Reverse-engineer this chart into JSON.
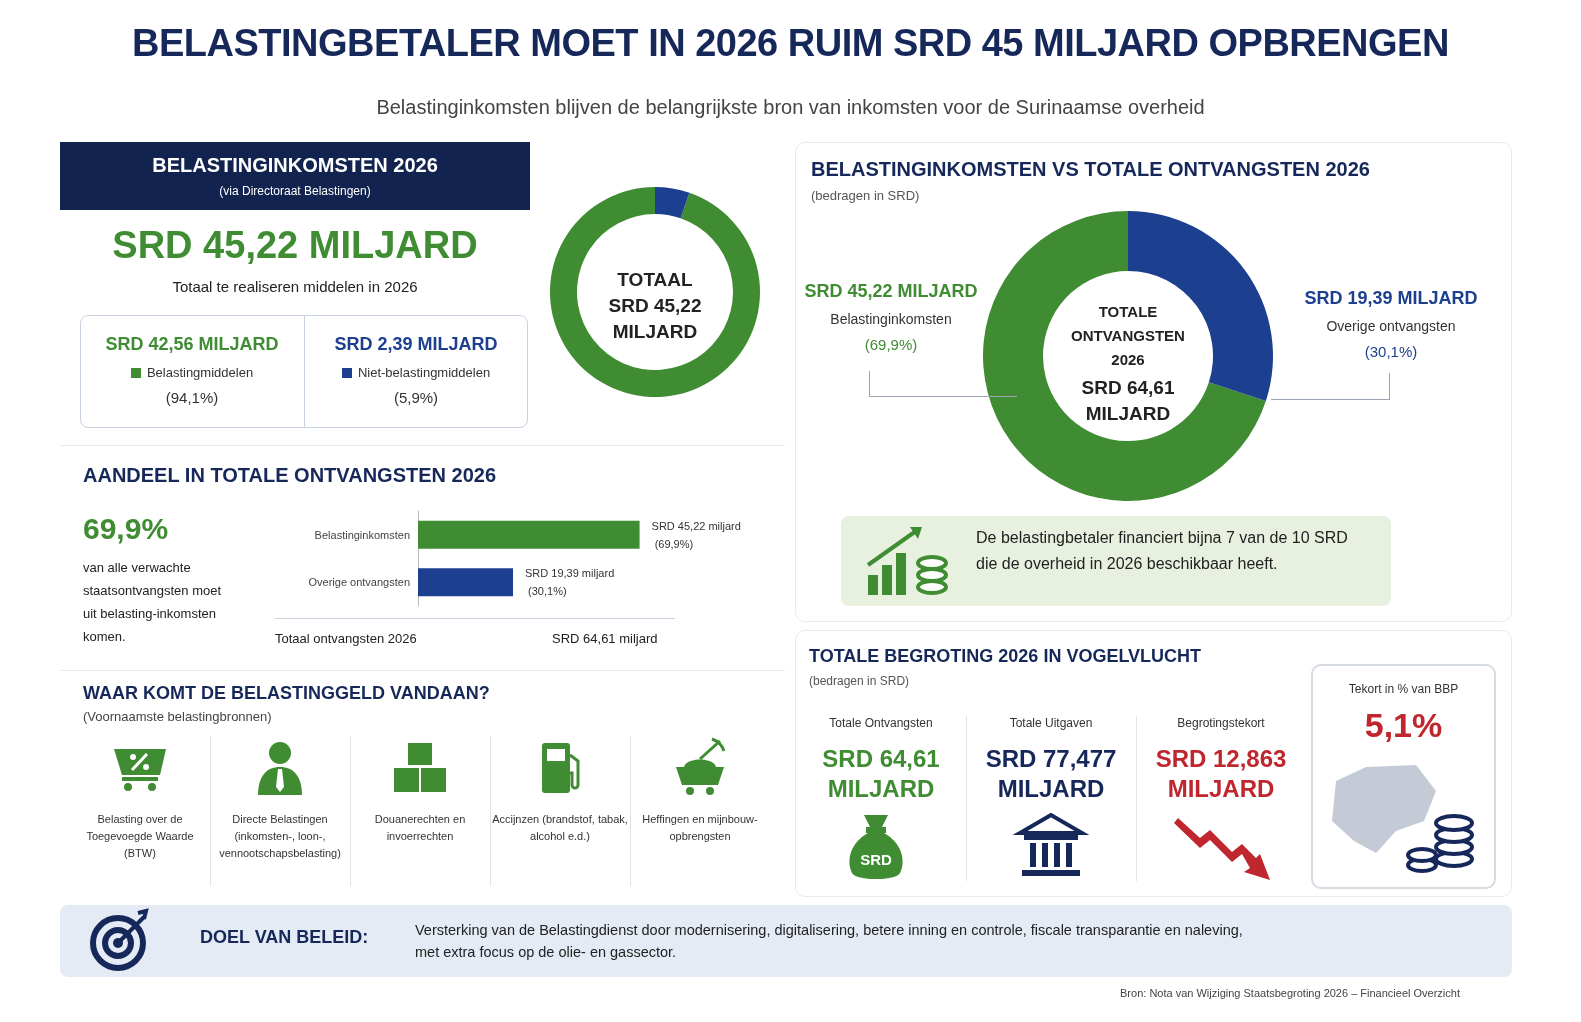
{
  "chart_data": [
    {
      "type": "other",
      "title": "BELASTINGBETALER MOET IN 2026 RUIM SRD 45 MILJARD OPBRENGEN",
      "subtitle": "Belastinginkomsten blijven de belangrijkste bron van inkomsten voor de Surinaamse overheid"
    },
    {
      "type": "donut",
      "title": "BELASTINGINKOMSTEN 2026",
      "subtitle": "(via Directoraat Belastingen)",
      "categories": [
        "Belastingmiddelen",
        "Niet-belastingmiddelen"
      ],
      "values": [
        42.56,
        2.39
      ],
      "colors": [
        "#3f8c32",
        "#1d3f8f"
      ],
      "value_labels": [
        "SRD 42,56 MILJARD",
        "SRD 2,39 MILJARD"
      ],
      "legend": "left",
      "annotations": [
        "SRD 45,22 MILJARD",
        "Totaal te realiseren middelen in 2026",
        "(94,1%)",
        "(5,9%)",
        "TOTAAL\nSRD 45,22\nMILJARD"
      ]
    },
    {
      "type": "donut",
      "title": "BELASTINGINKOMSTEN VS TOTALE ONTVANGSTEN 2026",
      "subtitle": "(bedragen in SRD)",
      "categories": [
        "Belastinginkomsten",
        "Overige ontvangsten"
      ],
      "values": [
        45.22,
        19.39
      ],
      "colors": [
        "#3f8c32",
        "#1d3f8f"
      ],
      "value_labels": [
        "SRD 45,22 MILJARD",
        "SRD 19,39 MILJARD"
      ],
      "legend": false,
      "annotations": [
        "(69,9%)",
        "(30,1%)",
        "TOTALE\nONTVANGSTEN\n2026",
        "SRD 64,61\nMILJARD",
        "De belastingbetaler financiert bijna 7 van de 10 SRD die de overheid in 2026 beschikbaar heeft."
      ]
    },
    {
      "type": "bar",
      "orientation": "horizontal",
      "title": "AANDEEL IN TOTALE ONTVANGSTEN 2026",
      "categories": [
        "Belastinginkomsten",
        "Overige ontvangsten"
      ],
      "values": [
        45.22,
        19.39
      ],
      "colors": [
        "#3f8c32",
        "#1d3f8f"
      ],
      "value_labels": [
        "SRD 45,22 miljard (69,9%)",
        "SRD 19,39 miljard (30,1%)"
      ],
      "legend": false,
      "annotations": [
        "69,9%",
        "van alle verwachte staatsontvangsten moet uit belasting-inkomsten komen.",
        "Totaal ontvangsten 2026",
        "SRD 64,61 miljard"
      ]
    },
    {
      "type": "other",
      "title": "WAAR KOMT DE BELASTINGGELD VANDAAN?",
      "subtitle": "(Voornaamste belastingbronnen)",
      "annotations": [
        "Belasting over de Toegevoegde Waarde (BTW)",
        "Directe Belastingen (inkomsten-, loon-, vennootschapsbelasting)",
        "Douanerechten en invoerrechten",
        "Accijnzen (brandstof, tabak, alcohol e.d.)",
        "Heffingen en mijnbouw-opbrengsten"
      ]
    },
    {
      "type": "other",
      "title": "TOTALE BEGROTING 2026 IN VOGELVLUCHT",
      "subtitle": "(bedragen in SRD)",
      "annotations": [
        "Totale Ontvangsten",
        "SRD 64,61 MILJARD",
        "Totale Uitgaven",
        "SRD 77,477 MILJARD",
        "Begrotingstekort",
        "SRD 12,863 MILJARD",
        "Tekort in % van BBP",
        "5,1%",
        "SRD"
      ]
    },
    {
      "type": "other",
      "title": "DOEL VAN BELEID:",
      "annotations": [
        "Versterking van de Belastingdienst door modernisering, digitalisering, betere inning en controle, fiscale transparantie en naleving, met extra focus op de olie- en gassector.",
        "Bron: Nota van Wijziging Staatsbegroting 2026 – Financieel Overzicht"
      ]
    }
  ]
}
